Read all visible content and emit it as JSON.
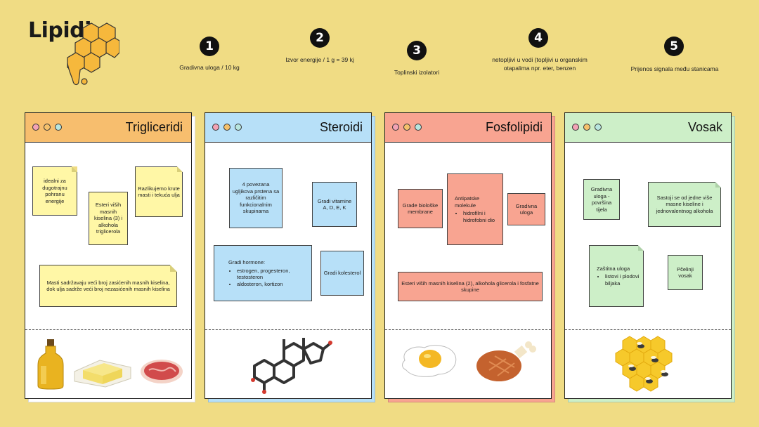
{
  "logo": {
    "title": "Lipidi"
  },
  "roles": [
    {
      "num": "1",
      "text": "Gradivna uloga / 10 kg"
    },
    {
      "num": "2",
      "text": "Izvor energije / 1 g = 39 kj"
    },
    {
      "num": "3",
      "text": "Toplinski izolatori"
    },
    {
      "num": "4",
      "text": "netopljivi u vodi (topljivi u organskim otapalima npr. eter, benzen"
    },
    {
      "num": "5",
      "text": "Prijenos signala među stanicama"
    }
  ],
  "cards": {
    "trigliceridi": {
      "title": "Trigliceridi",
      "notes": [
        "idealni za dugotrajnu pohranu energije",
        "Esteri viših masnih kiselina (3) i alkohola triglicerola",
        "Razlikujemo krute masti i tekuća ulja",
        "Masti sadržavaju veći broj zasićenih masnih kiselina, dok ulja sadrže veći broj nezasićenih masnih kiselina"
      ]
    },
    "steroidi": {
      "title": "Steroidi",
      "notes": [
        "4 povezana ugljikova prstena sa različitim funkcionalnim skupinama",
        "Gradi vitamine A, D, E, K",
        "Gradi hormone:",
        "Gradi kolesterol"
      ],
      "hormones": [
        "estrogen, progesteron, testosteron",
        "aldosteron, kortizon"
      ]
    },
    "fosfolipidi": {
      "title": "Fosfolipidi",
      "notes": [
        "Grade biološke membrane",
        "Antipatske molekule",
        "Gradivna uloga",
        "Esteri viših masnih kiselina (2), alkohola glicerola i fosfatne skupine"
      ],
      "parts": [
        "hidrofilni i hidrofobni dio"
      ]
    },
    "vosak": {
      "title": "Vosak",
      "notes": [
        "Gradivna uloga - površina tijela",
        "Sastoji se od jedne više masne kiseline i jednovalentnog alkohola",
        "Zaštitna uloga",
        "Pčelinji vosak"
      ],
      "protect": [
        "listovi i plodovi biljaka"
      ]
    }
  },
  "colors": {
    "background": "#F0DC84",
    "trigliceridi": "#F7BE6E",
    "steroidi": "#B7E0F8",
    "fosfolipidi": "#F8A491",
    "vosak": "#CDEFC8",
    "dot_red": "#F3A3B5",
    "dot_orange": "#F5C16C",
    "dot_teal": "#B8E6DF"
  },
  "icons": [
    "honeycomb-logo-icon",
    "oil-bottle-icon",
    "butter-icon",
    "steak-icon",
    "steroid-molecule-icon",
    "fried-egg-icon",
    "ham-icon",
    "honeycomb-bees-icon"
  ]
}
